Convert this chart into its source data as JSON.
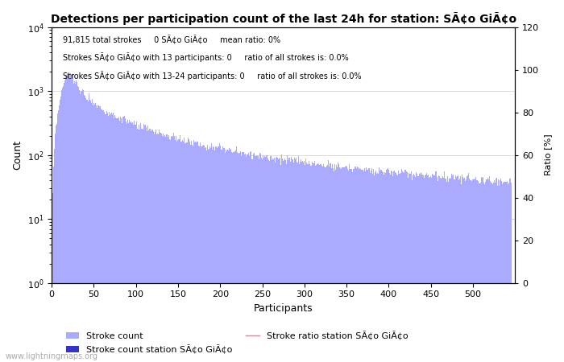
{
  "title": "Detections per participation count of the last 24h for station: SÃ¢o GiÃ¢o",
  "annotation_line1": "91,815 total strokes     0 SÃ¢o GiÃ¢o     mean ratio: 0%",
  "annotation_line2": "Strokes SÃ¢o GiÃ¢o with 13 participants: 0     ratio of all strokes is: 0.0%",
  "annotation_line3": "Strokes SÃ¢o GiÃ¢o with 13-24 participants: 0     ratio of all strokes is: 0.0%",
  "xlabel": "Participants",
  "ylabel_left": "Count",
  "ylabel_right": "Ratio [%]",
  "bar_color_main": "#aaaaff",
  "bar_color_station": "#3333cc",
  "line_color_ratio": "#ff69b4",
  "watermark": "www.lightningmaps.org",
  "legend_stroke_count": "Stroke count",
  "legend_stroke_count_station": "Stroke count station SÃ¢o GiÃ¢o",
  "legend_stroke_ratio": "Stroke ratio station SÃ¢o GiÃ¢o",
  "ylim_right": [
    0,
    120
  ],
  "right_yticks": [
    0,
    20,
    40,
    60,
    80,
    100,
    120
  ],
  "grid_color": "#cccccc",
  "background_color": "#ffffff",
  "total_strokes": 91815,
  "num_participants": 545
}
